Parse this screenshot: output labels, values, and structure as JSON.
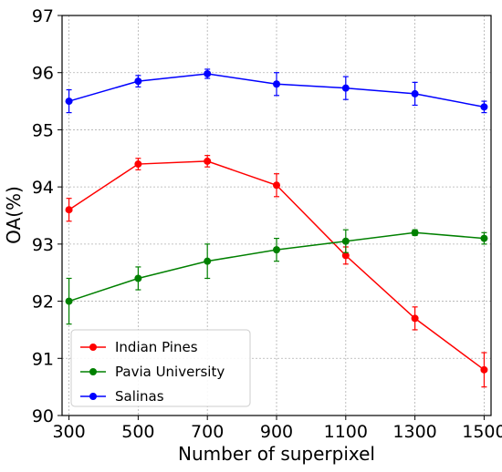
{
  "chart_data": {
    "type": "line",
    "xlabel": "Number of superpixel",
    "ylabel": "OA(%)",
    "x": [
      300,
      500,
      700,
      900,
      1100,
      1300,
      1500
    ],
    "xlim": [
      280,
      1520
    ],
    "ylim": [
      90,
      97
    ],
    "xticks": [
      300,
      500,
      700,
      900,
      1100,
      1300,
      1500
    ],
    "yticks": [
      90,
      91,
      92,
      93,
      94,
      95,
      96,
      97
    ],
    "grid": true,
    "legend_position": "lower-left",
    "series": [
      {
        "name": "Indian Pines",
        "color": "#ff0000",
        "values": [
          93.6,
          94.4,
          94.45,
          94.03,
          92.8,
          91.7,
          90.8
        ],
        "errors": [
          0.2,
          0.1,
          0.1,
          0.2,
          0.15,
          0.2,
          0.3
        ]
      },
      {
        "name": "Pavia University",
        "color": "#008000",
        "values": [
          92.0,
          92.4,
          92.7,
          92.9,
          93.05,
          93.2,
          93.1
        ],
        "errors": [
          0.4,
          0.2,
          0.3,
          0.2,
          0.2,
          0.05,
          0.1
        ]
      },
      {
        "name": "Salinas",
        "color": "#0000ff",
        "values": [
          95.5,
          95.85,
          95.98,
          95.8,
          95.73,
          95.63,
          95.4
        ],
        "errors": [
          0.2,
          0.1,
          0.08,
          0.2,
          0.2,
          0.2,
          0.1
        ]
      }
    ]
  }
}
